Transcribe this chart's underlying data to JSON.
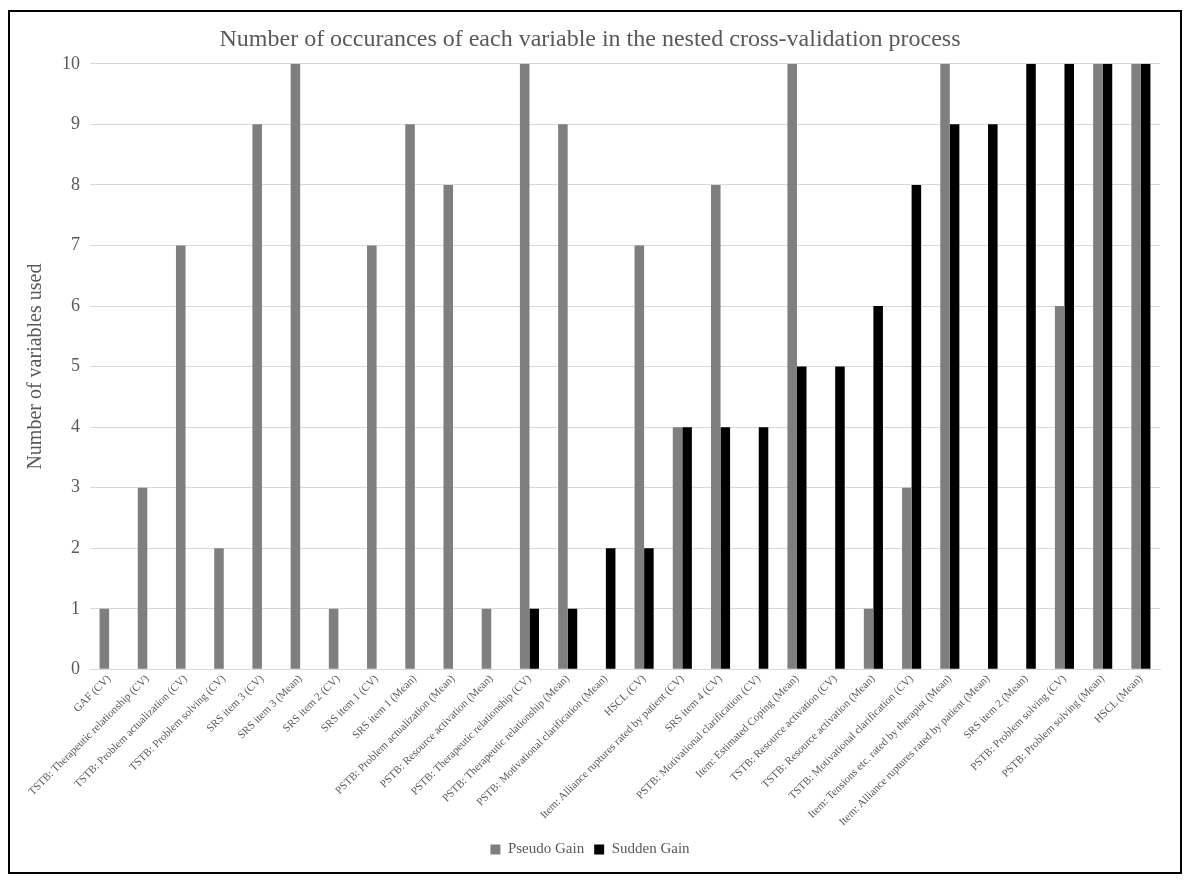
{
  "chart_data": {
    "type": "bar",
    "title": "Number of occurances of each variable in the nested cross-validation process",
    "ylabel": "Number of variables used",
    "categories": [
      "GAF (CV)",
      "TSTB: Therapeutic relationship (CV)",
      "TSTB: Problem actualization (CV)",
      "TSTB: Problem solving (CV)",
      "SRS item 3 (CV)",
      "SRS item 3 (Mean)",
      "SRS item 2 (CV)",
      "SRS item 1 (CV)",
      "SRS item 1 (Mean)",
      "PSTB: Problem actualization (Mean)",
      "PSTB: Resource activation (Mean)",
      "PSTB: Therapeutic relationship (CV)",
      "PSTB: Therapeutic relationship (Mean)",
      "PSTB: Motivational clarification (Mean)",
      "HSCL (CV)",
      "Item: Alliance ruptures rated by patient (CV)",
      "SRS item 4 (CV)",
      "PSTB: Motivational clarification (CV)",
      "Item: Estimated Coping (Mean)",
      "TSTB: Resource activation (CV)",
      "TSTB: Resource activation (Mean)",
      "TSTB: Motivational clarification (CV)",
      "Item: Tensions etc. rated by therapist (Mean)",
      "Item: Alliance ruptures rated by patient (Mean)",
      "SRS item 2 (Mean)",
      "PSTB: Problem solving (CV)",
      "PSTB: Problem solving (Mean)",
      "HSCL (Mean)"
    ],
    "series": [
      {
        "name": "Pseudo Gain",
        "color": "#7f7f7f",
        "values": [
          1,
          3,
          7,
          2,
          9,
          10,
          1,
          7,
          9,
          8,
          1,
          10,
          9,
          0,
          7,
          4,
          8,
          0,
          10,
          0,
          1,
          3,
          10,
          0,
          0,
          6,
          10,
          10
        ]
      },
      {
        "name": "Sudden Gain",
        "color": "#000000",
        "values": [
          0,
          0,
          0,
          0,
          0,
          0,
          0,
          0,
          0,
          0,
          0,
          1,
          1,
          2,
          2,
          4,
          4,
          4,
          5,
          5,
          6,
          8,
          9,
          9,
          10,
          10,
          10,
          10
        ]
      }
    ],
    "ylim": [
      0,
      10
    ],
    "yticks": [
      0,
      1,
      2,
      3,
      4,
      5,
      6,
      7,
      8,
      9,
      10
    ],
    "grid": "y",
    "legend": "bottom"
  }
}
